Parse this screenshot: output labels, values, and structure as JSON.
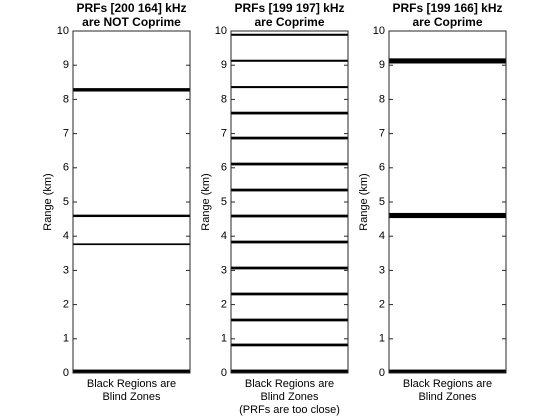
{
  "chart_data": [
    {
      "type": "blind-zones",
      "title": [
        "PRFs [200  164] kHz",
        "are NOT Coprime"
      ],
      "ylabel": "Range (km)",
      "xlabel": [
        "Black Regions are",
        "Blind Zones"
      ],
      "ylim": [
        0,
        10
      ],
      "yticks": [
        0,
        1,
        2,
        3,
        4,
        5,
        6,
        7,
        8,
        9,
        10
      ],
      "color": "#000000",
      "zones": [
        [
          8.23,
          8.33
        ],
        [
          4.56,
          4.63
        ],
        [
          3.74,
          3.79
        ],
        [
          0,
          0.1
        ]
      ]
    },
    {
      "type": "blind-zones",
      "title": [
        "PRFs [199  197] kHz",
        "are Coprime"
      ],
      "ylabel": "Range (km)",
      "xlabel": [
        "Black Regions are",
        "Blind Zones",
        "(PRFs are too close)"
      ],
      "ylim": [
        0,
        10
      ],
      "yticks": [
        0,
        1,
        2,
        3,
        4,
        5,
        6,
        7,
        8,
        9,
        10
      ],
      "color": "#000000",
      "zones": [
        [
          9.86,
          9.92
        ],
        [
          9.1,
          9.16
        ],
        [
          8.33,
          8.39
        ],
        [
          7.56,
          7.64
        ],
        [
          6.83,
          6.91
        ],
        [
          6.07,
          6.15
        ],
        [
          5.31,
          5.39
        ],
        [
          4.55,
          4.63
        ],
        [
          3.79,
          3.87
        ],
        [
          3.03,
          3.11
        ],
        [
          2.27,
          2.35
        ],
        [
          1.51,
          1.59
        ],
        [
          0.78,
          0.86
        ],
        [
          0,
          0.1
        ]
      ]
    },
    {
      "type": "blind-zones",
      "title": [
        "PRFs [199  166] kHz",
        "are Coprime"
      ],
      "ylabel": "Range (km)",
      "xlabel": [
        "Black Regions are",
        "Blind Zones"
      ],
      "ylim": [
        0,
        10
      ],
      "yticks": [
        0,
        1,
        2,
        3,
        4,
        5,
        6,
        7,
        8,
        9,
        10
      ],
      "color": "#000000",
      "zones": [
        [
          9.05,
          9.2
        ],
        [
          4.53,
          4.68
        ],
        [
          0,
          0.1
        ]
      ]
    }
  ]
}
